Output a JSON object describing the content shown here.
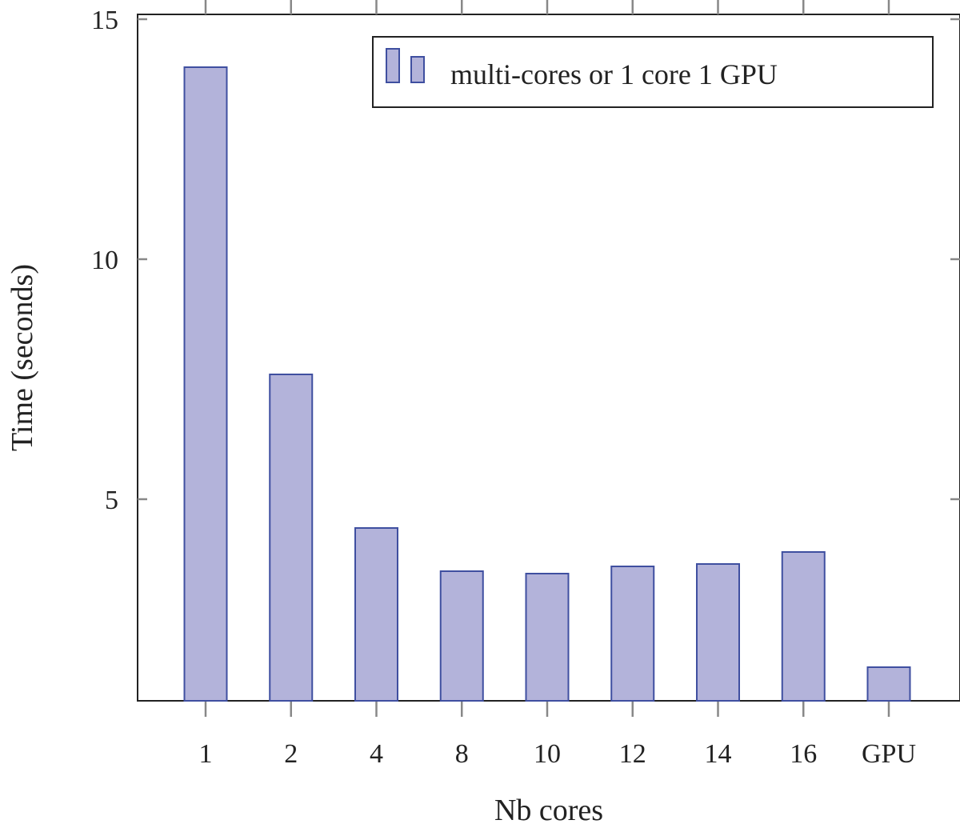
{
  "chart_data": {
    "type": "bar",
    "categories": [
      "1",
      "2",
      "4",
      "8",
      "10",
      "12",
      "14",
      "16",
      "GPU"
    ],
    "values": [
      14.0,
      7.6,
      4.4,
      3.5,
      3.45,
      3.6,
      3.65,
      3.9,
      1.5
    ],
    "xlabel": "Nb cores",
    "ylabel": "Time (seconds)",
    "ylim": [
      0.8,
      15.1
    ],
    "yticks": [
      5,
      10,
      15
    ],
    "grid": false,
    "legend": {
      "label": "multi-cores or 1 core 1 GPU",
      "position": "top-right"
    },
    "colors": {
      "bar_fill": "#b3b3da",
      "bar_stroke": "#3f4fa0",
      "axis": "#222222",
      "tick": "#888888"
    }
  }
}
